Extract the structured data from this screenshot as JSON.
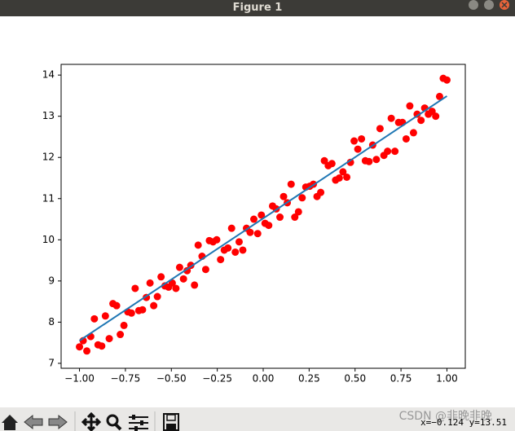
{
  "window": {
    "title": "Figure 1"
  },
  "status": {
    "text": "x=−0.124 y=13.51",
    "watermark": "CSDN @非晚非晚"
  },
  "chart_data": {
    "type": "scatter",
    "series": [
      {
        "type": "scatter",
        "color": "#ff0000",
        "x": [
          -1,
          -0.98,
          -0.96,
          -0.939,
          -0.919,
          -0.899,
          -0.879,
          -0.859,
          -0.838,
          -0.818,
          -0.798,
          -0.778,
          -0.758,
          -0.737,
          -0.717,
          -0.697,
          -0.677,
          -0.657,
          -0.636,
          -0.616,
          -0.596,
          -0.576,
          -0.556,
          -0.535,
          -0.515,
          -0.495,
          -0.475,
          -0.455,
          -0.434,
          -0.414,
          -0.394,
          -0.374,
          -0.354,
          -0.333,
          -0.313,
          -0.293,
          -0.273,
          -0.253,
          -0.232,
          -0.212,
          -0.192,
          -0.172,
          -0.152,
          -0.131,
          -0.111,
          -0.091,
          -0.071,
          -0.051,
          -0.03,
          -0.01,
          0.01,
          0.03,
          0.051,
          0.071,
          0.091,
          0.111,
          0.131,
          0.152,
          0.172,
          0.192,
          0.212,
          0.232,
          0.253,
          0.273,
          0.293,
          0.313,
          0.333,
          0.354,
          0.374,
          0.394,
          0.414,
          0.434,
          0.455,
          0.475,
          0.495,
          0.515,
          0.535,
          0.556,
          0.576,
          0.596,
          0.616,
          0.636,
          0.657,
          0.677,
          0.697,
          0.717,
          0.737,
          0.758,
          0.778,
          0.798,
          0.818,
          0.838,
          0.859,
          0.879,
          0.899,
          0.919,
          0.939,
          0.96,
          0.98,
          1
        ],
        "values": [
          7.4,
          7.55,
          7.3,
          7.65,
          8.08,
          7.45,
          7.42,
          8.15,
          7.6,
          8.45,
          8.4,
          7.7,
          7.92,
          8.25,
          8.22,
          8.82,
          8.28,
          8.3,
          8.6,
          8.95,
          8.4,
          8.62,
          9.1,
          8.88,
          8.85,
          8.95,
          8.82,
          9.33,
          9.05,
          9.25,
          9.38,
          8.9,
          9.87,
          9.6,
          9.28,
          9.98,
          9.95,
          10.0,
          9.52,
          9.75,
          9.8,
          10.28,
          9.7,
          9.95,
          9.75,
          10.28,
          10.18,
          10.5,
          10.15,
          10.6,
          10.4,
          10.35,
          10.82,
          10.75,
          10.55,
          11.05,
          10.9,
          11.35,
          10.55,
          10.68,
          11.02,
          11.28,
          11.3,
          11.35,
          11.05,
          11.15,
          11.92,
          11.8,
          11.85,
          11.45,
          11.5,
          11.65,
          11.52,
          11.88,
          12.4,
          12.2,
          12.45,
          11.92,
          11.9,
          12.3,
          11.95,
          12.7,
          12.05,
          12.15,
          12.95,
          12.15,
          12.85,
          12.85,
          12.45,
          13.25,
          12.6,
          13.05,
          12.9,
          13.2,
          13.05,
          13.12,
          13.0,
          13.48,
          13.92,
          13.88
        ]
      },
      {
        "type": "line",
        "color": "#1f77b4",
        "x": [
          -1,
          1
        ],
        "values": [
          7.55,
          13.49
        ]
      }
    ],
    "xlim": [
      -1.1,
      1.1
    ],
    "ylim": [
      6.88,
      14.26
    ],
    "xticks": [
      {
        "value": -1,
        "label": "−1.00"
      },
      {
        "value": -0.75,
        "label": "−0.75"
      },
      {
        "value": -0.5,
        "label": "−0.50"
      },
      {
        "value": -0.25,
        "label": "−0.25"
      },
      {
        "value": 0,
        "label": "0.00"
      },
      {
        "value": 0.25,
        "label": "0.25"
      },
      {
        "value": 0.5,
        "label": "0.50"
      },
      {
        "value": 0.75,
        "label": "0.75"
      },
      {
        "value": 1,
        "label": "1.00"
      }
    ],
    "yticks": [
      7,
      8,
      9,
      10,
      11,
      12,
      13,
      14
    ]
  }
}
